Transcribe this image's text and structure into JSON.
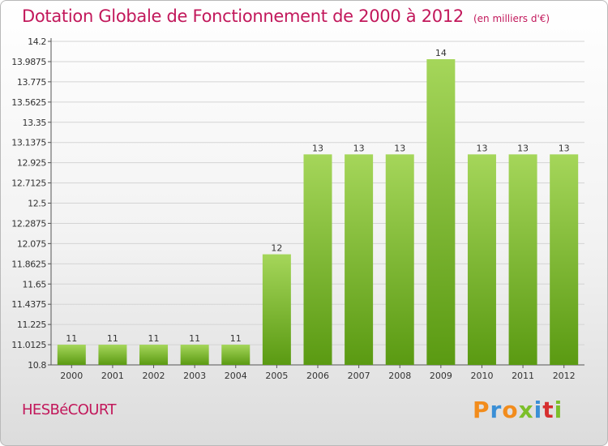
{
  "chart_data": {
    "type": "bar",
    "title": "Dotation Globale de Fonctionnement de 2000 à 2012",
    "unit_note": "(en milliers d'€)",
    "categories": [
      "2000",
      "2001",
      "2002",
      "2003",
      "2004",
      "2005",
      "2006",
      "2007",
      "2008",
      "2009",
      "2010",
      "2011",
      "2012"
    ],
    "values": [
      11,
      11,
      11,
      11,
      11,
      12,
      13,
      13,
      13,
      14,
      13,
      13,
      13
    ],
    "data_labels": [
      "11",
      "11",
      "11",
      "11",
      "11",
      "12",
      "13",
      "13",
      "13",
      "14",
      "13",
      "13",
      "13"
    ],
    "plotted_values": [
      11.0125,
      11.0125,
      11.0125,
      11.0125,
      11.0125,
      11.9625,
      13.0125,
      13.0125,
      13.0125,
      14.0125,
      13.0125,
      13.0125,
      13.0125
    ],
    "ylim": [
      10.8,
      14.2
    ],
    "yticks": [
      10.8,
      11.0125,
      11.225,
      11.4375,
      11.65,
      11.8625,
      12.075,
      12.2875,
      12.5,
      12.7125,
      12.925,
      13.1375,
      13.35,
      13.5625,
      13.775,
      13.9875,
      14.2
    ],
    "ytick_labels": [
      "10.8",
      "11.0125",
      "11.225",
      "11.4375",
      "11.65",
      "11.8625",
      "12.075",
      "12.2875",
      "12.5",
      "12.7125",
      "12.925",
      "13.1375",
      "13.35",
      "13.5625",
      "13.775",
      "13.9875",
      "14.2"
    ],
    "xlabel": "",
    "ylabel": "",
    "grid": true,
    "colors": {
      "bar_top": "#a5d65a",
      "bar_bottom": "#5a9a12",
      "grid": "#d4d4d4",
      "axis": "#555555",
      "title": "#c2185b"
    }
  },
  "footer": {
    "commune": "HESBéCOURT",
    "logo_text": "Proxiti",
    "logo_colors": [
      "#f28c1c",
      "#3a8fd6",
      "#f28c1c",
      "#7cbf2a",
      "#3a8fd6",
      "#d62f2f",
      "#7cbf2a"
    ]
  }
}
